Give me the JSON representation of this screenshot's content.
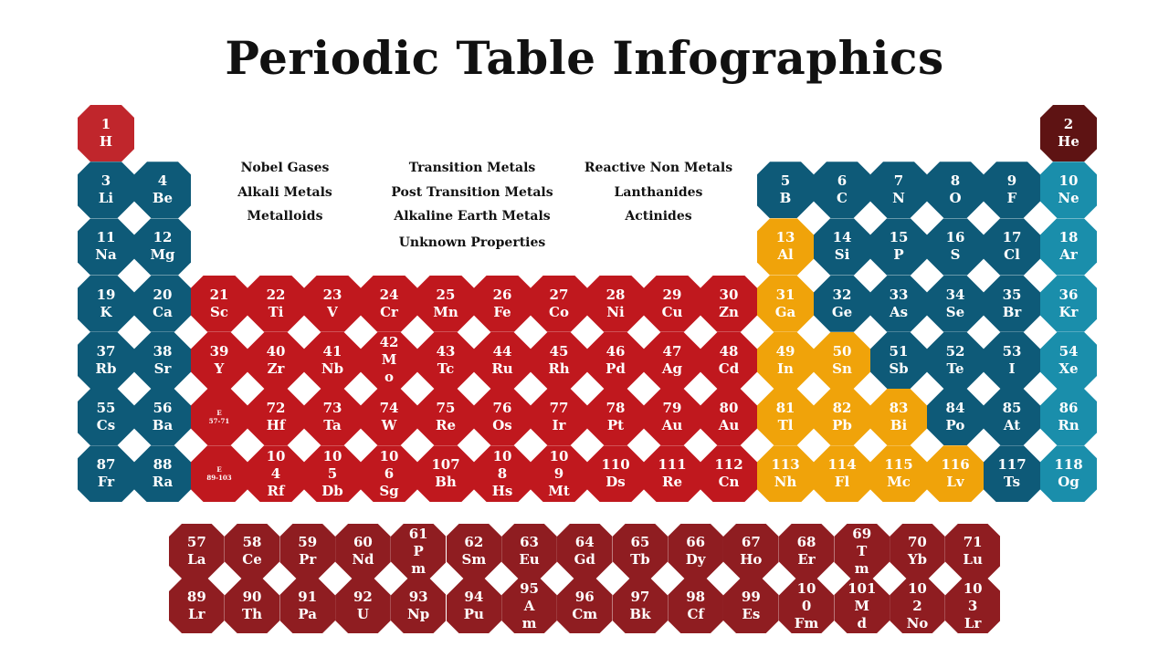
{
  "title": "Periodic Table Infographics",
  "colors": {
    "blue": "#0e5a78",
    "teal": "#1a8eab",
    "red": "#c0181e",
    "darkred": "#8f1d21",
    "hydrogen": "#c0262c",
    "helium": "#5e1313",
    "orange": "#f0a30a",
    "white": "#ffffff"
  },
  "legend": [
    {
      "label": "Nobel Gases"
    },
    {
      "label": "Alkali  Metals"
    },
    {
      "label": "Metalloids"
    },
    {
      "label": "Transition Metals"
    },
    {
      "label": "Post Transition Metals"
    },
    {
      "label": "Alkaline Earth Metals"
    },
    {
      "label": "Unknown Properties"
    },
    {
      "label": "Reactive Non Metals"
    },
    {
      "label": "Lanthanides"
    },
    {
      "label": "Actinides"
    }
  ],
  "main_elements": [
    {
      "text": "1\nH",
      "color": "hydrogen",
      "row": 0,
      "col": 0
    },
    {
      "text": "2\nHe",
      "color": "helium",
      "row": 0,
      "col": 17
    },
    {
      "text": "3\nLi",
      "color": "blue",
      "row": 1,
      "col": 0
    },
    {
      "text": "4\nBe",
      "color": "blue",
      "row": 1,
      "col": 1
    },
    {
      "text": "5\nB",
      "color": "blue",
      "row": 1,
      "col": 12
    },
    {
      "text": "6\nC",
      "color": "blue",
      "row": 1,
      "col": 13
    },
    {
      "text": "7\nN",
      "color": "blue",
      "row": 1,
      "col": 14
    },
    {
      "text": "8\nO",
      "color": "blue",
      "row": 1,
      "col": 15
    },
    {
      "text": "9\nF",
      "color": "blue",
      "row": 1,
      "col": 16
    },
    {
      "text": "10\nNe",
      "color": "teal",
      "row": 1,
      "col": 17
    },
    {
      "text": "11\nNa",
      "color": "blue",
      "row": 2,
      "col": 0
    },
    {
      "text": "12\nMg",
      "color": "blue",
      "row": 2,
      "col": 1
    },
    {
      "text": "13\nAl",
      "color": "orange",
      "row": 2,
      "col": 12
    },
    {
      "text": "14\nSi",
      "color": "blue",
      "row": 2,
      "col": 13
    },
    {
      "text": "15\nP",
      "color": "blue",
      "row": 2,
      "col": 14
    },
    {
      "text": "16\nS",
      "color": "blue",
      "row": 2,
      "col": 15
    },
    {
      "text": "17\nCl",
      "color": "blue",
      "row": 2,
      "col": 16
    },
    {
      "text": "18\nAr",
      "color": "teal",
      "row": 2,
      "col": 17
    },
    {
      "text": "19\nK",
      "color": "blue",
      "row": 3,
      "col": 0
    },
    {
      "text": "20\nCa",
      "color": "blue",
      "row": 3,
      "col": 1
    },
    {
      "text": "21\nSc",
      "color": "red",
      "row": 3,
      "col": 2
    },
    {
      "text": "22\nTi",
      "color": "red",
      "row": 3,
      "col": 3
    },
    {
      "text": "23\nV",
      "color": "red",
      "row": 3,
      "col": 4
    },
    {
      "text": "24\nCr",
      "color": "red",
      "row": 3,
      "col": 5
    },
    {
      "text": "25\nMn",
      "color": "red",
      "row": 3,
      "col": 6
    },
    {
      "text": "26\nFe",
      "color": "red",
      "row": 3,
      "col": 7
    },
    {
      "text": "27\nCo",
      "color": "red",
      "row": 3,
      "col": 8
    },
    {
      "text": "28\nNi",
      "color": "red",
      "row": 3,
      "col": 9
    },
    {
      "text": "29\nCu",
      "color": "red",
      "row": 3,
      "col": 10
    },
    {
      "text": "30\nZn",
      "color": "red",
      "row": 3,
      "col": 11
    },
    {
      "text": "31\nGa",
      "color": "orange",
      "row": 3,
      "col": 12
    },
    {
      "text": "32\nGe",
      "color": "blue",
      "row": 3,
      "col": 13
    },
    {
      "text": "33\nAs",
      "color": "blue",
      "row": 3,
      "col": 14
    },
    {
      "text": "34\nSe",
      "color": "blue",
      "row": 3,
      "col": 15
    },
    {
      "text": "35\nBr",
      "color": "blue",
      "row": 3,
      "col": 16
    },
    {
      "text": "36\nKr",
      "color": "teal",
      "row": 3,
      "col": 17
    },
    {
      "text": "37\nRb",
      "color": "blue",
      "row": 4,
      "col": 0
    },
    {
      "text": "38\nSr",
      "color": "blue",
      "row": 4,
      "col": 1
    },
    {
      "text": "39\nY",
      "color": "red",
      "row": 4,
      "col": 2
    },
    {
      "text": "40\nZr",
      "color": "red",
      "row": 4,
      "col": 3
    },
    {
      "text": "41\nNb",
      "color": "red",
      "row": 4,
      "col": 4
    },
    {
      "text": "42\nM\no",
      "color": "red",
      "row": 4,
      "col": 5
    },
    {
      "text": "43\nTc",
      "color": "red",
      "row": 4,
      "col": 6
    },
    {
      "text": "44\nRu",
      "color": "red",
      "row": 4,
      "col": 7
    },
    {
      "text": "45\nRh",
      "color": "red",
      "row": 4,
      "col": 8
    },
    {
      "text": "46\nPd",
      "color": "red",
      "row": 4,
      "col": 9
    },
    {
      "text": "47\nAg",
      "color": "red",
      "row": 4,
      "col": 10
    },
    {
      "text": "48\nCd",
      "color": "red",
      "row": 4,
      "col": 11
    },
    {
      "text": "49\nIn",
      "color": "orange",
      "row": 4,
      "col": 12
    },
    {
      "text": "50\nSn",
      "color": "orange",
      "row": 4,
      "col": 13
    },
    {
      "text": "51\nSb",
      "color": "blue",
      "row": 4,
      "col": 14
    },
    {
      "text": "52\nTe",
      "color": "blue",
      "row": 4,
      "col": 15
    },
    {
      "text": "53\nI",
      "color": "blue",
      "row": 4,
      "col": 16
    },
    {
      "text": "54\nXe",
      "color": "teal",
      "row": 4,
      "col": 17
    },
    {
      "text": "55\nCs",
      "color": "blue",
      "row": 5,
      "col": 0
    },
    {
      "text": "56\nBa",
      "color": "blue",
      "row": 5,
      "col": 1
    },
    {
      "text": "E\n57-71",
      "color": "red",
      "row": 5,
      "col": 2,
      "small": true
    },
    {
      "text": "72\nHf",
      "color": "red",
      "row": 5,
      "col": 3
    },
    {
      "text": "73\nTa",
      "color": "red",
      "row": 5,
      "col": 4
    },
    {
      "text": "74\nW",
      "color": "red",
      "row": 5,
      "col": 5
    },
    {
      "text": "75\nRe",
      "color": "red",
      "row": 5,
      "col": 6
    },
    {
      "text": "76\nOs",
      "color": "red",
      "row": 5,
      "col": 7
    },
    {
      "text": "77\nIr",
      "color": "red",
      "row": 5,
      "col": 8
    },
    {
      "text": "78\nPt",
      "color": "red",
      "row": 5,
      "col": 9
    },
    {
      "text": "79\nAu",
      "color": "red",
      "row": 5,
      "col": 10
    },
    {
      "text": "80\nAu",
      "color": "red",
      "row": 5,
      "col": 11
    },
    {
      "text": "81\nTl",
      "color": "orange",
      "row": 5,
      "col": 12
    },
    {
      "text": "82\nPb",
      "color": "orange",
      "row": 5,
      "col": 13
    },
    {
      "text": "83\nBi",
      "color": "orange",
      "row": 5,
      "col": 14
    },
    {
      "text": "84\nPo",
      "color": "blue",
      "row": 5,
      "col": 15
    },
    {
      "text": "85\nAt",
      "color": "blue",
      "row": 5,
      "col": 16
    },
    {
      "text": "86\nRn",
      "color": "teal",
      "row": 5,
      "col": 17
    },
    {
      "text": "87\nFr",
      "color": "blue",
      "row": 6,
      "col": 0
    },
    {
      "text": "88\nRa",
      "color": "blue",
      "row": 6,
      "col": 1
    },
    {
      "text": "E\n89-103",
      "color": "red",
      "row": 6,
      "col": 2,
      "small": true
    },
    {
      "text": "10\n4\nRf",
      "color": "red",
      "row": 6,
      "col": 3
    },
    {
      "text": "10\n5\nDb",
      "color": "red",
      "row": 6,
      "col": 4
    },
    {
      "text": "10\n6\nSg",
      "color": "red",
      "row": 6,
      "col": 5
    },
    {
      "text": "107\nBh",
      "color": "red",
      "row": 6,
      "col": 6
    },
    {
      "text": "10\n8\nHs",
      "color": "red",
      "row": 6,
      "col": 7
    },
    {
      "text": "10\n9\nMt",
      "color": "red",
      "row": 6,
      "col": 8
    },
    {
      "text": "110\nDs",
      "color": "red",
      "row": 6,
      "col": 9
    },
    {
      "text": "111\nRe",
      "color": "red",
      "row": 6,
      "col": 10
    },
    {
      "text": "112\nCn",
      "color": "red",
      "row": 6,
      "col": 11
    },
    {
      "text": "113\nNh",
      "color": "orange",
      "row": 6,
      "col": 12
    },
    {
      "text": "114\nFl",
      "color": "orange",
      "row": 6,
      "col": 13
    },
    {
      "text": "115\nMc",
      "color": "orange",
      "row": 6,
      "col": 14
    },
    {
      "text": "116\nLv",
      "color": "orange",
      "row": 6,
      "col": 15
    },
    {
      "text": "117\nTs",
      "color": "blue",
      "row": 6,
      "col": 16
    },
    {
      "text": "118\nOg",
      "color": "teal",
      "row": 6,
      "col": 17
    }
  ],
  "lanthanides": [
    "57\nLa",
    "58\nCe",
    "59\nPr",
    "60\nNd",
    "61\nP\nm",
    "62\nSm",
    "63\nEu",
    "64\nGd",
    "65\nTb",
    "66\nDy",
    "67\nHo",
    "68\nEr",
    "69\nT\nm",
    "70\nYb",
    "71\nLu"
  ],
  "actinides": [
    "89\nLr",
    "90\nTh",
    "91\nPa",
    "92\nU",
    "93\nNp",
    "94\nPu",
    "95\nA\nm",
    "96\nCm",
    "97\nBk",
    "98\nCf",
    "99\nEs",
    "10\n0\nFm",
    "101\nM\nd",
    "10\n2\nNo",
    "10\n3\nLr"
  ]
}
